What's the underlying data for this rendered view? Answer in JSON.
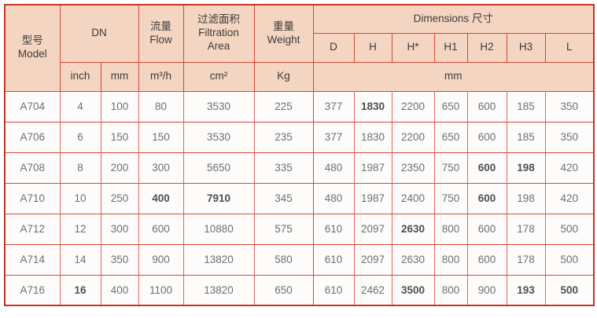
{
  "table": {
    "header": {
      "model_zh": "型号",
      "model_en": "Model",
      "dn": "DN",
      "flow_zh": "流量",
      "flow_en": "Flow",
      "filtration_zh": "过滤面积",
      "filtration_en1": "Filtration",
      "filtration_en2": "Area",
      "weight_zh": "重量",
      "weight_en": "Weight",
      "dimensions": "Dimensions 尺寸",
      "dim_cols": [
        "D",
        "H",
        "H*",
        "H1",
        "H2",
        "H3",
        "L"
      ],
      "units": {
        "inch": "inch",
        "mm": "mm",
        "flow": "m³/h",
        "area": "cm²",
        "weight": "Kg",
        "dim": "mm"
      }
    },
    "rows": [
      {
        "model": "A704",
        "values": [
          "4",
          "100",
          "80",
          "3530",
          "225",
          "377",
          "1830",
          "2200",
          "650",
          "600",
          "185",
          "350"
        ],
        "bold": [
          6
        ]
      },
      {
        "model": "A706",
        "values": [
          "6",
          "150",
          "150",
          "3530",
          "235",
          "377",
          "1830",
          "2200",
          "650",
          "600",
          "185",
          "350"
        ],
        "bold": []
      },
      {
        "model": "A708",
        "values": [
          "8",
          "200",
          "300",
          "5650",
          "335",
          "480",
          "1987",
          "2350",
          "750",
          "600",
          "198",
          "420"
        ],
        "bold": [
          9,
          10
        ]
      },
      {
        "model": "A710",
        "values": [
          "10",
          "250",
          "400",
          "7910",
          "345",
          "480",
          "1987",
          "2400",
          "750",
          "600",
          "198",
          "420"
        ],
        "bold": [
          2,
          3,
          9
        ]
      },
      {
        "model": "A712",
        "values": [
          "12",
          "300",
          "600",
          "10880",
          "575",
          "610",
          "2097",
          "2630",
          "800",
          "600",
          "178",
          "500"
        ],
        "bold": [
          7
        ]
      },
      {
        "model": "A714",
        "values": [
          "14",
          "350",
          "900",
          "13820",
          "580",
          "610",
          "2097",
          "2630",
          "800",
          "600",
          "178",
          "500"
        ],
        "bold": []
      },
      {
        "model": "A716",
        "values": [
          "16",
          "400",
          "1100",
          "13820",
          "650",
          "610",
          "2462",
          "3500",
          "800",
          "900",
          "193",
          "500"
        ],
        "bold": [
          0,
          7,
          10,
          11
        ]
      }
    ]
  },
  "colors": {
    "border_outer": "#c23527",
    "border_grid": "#d8473b",
    "border_vertical_light": "#e2685a",
    "header_bg": "#f4d5c1",
    "header_text": "#3c3c3c",
    "cell_bg": "#fdfcfb",
    "cell_text": "#6f6f6f",
    "cell_text_bold": "#4f4f4f"
  }
}
